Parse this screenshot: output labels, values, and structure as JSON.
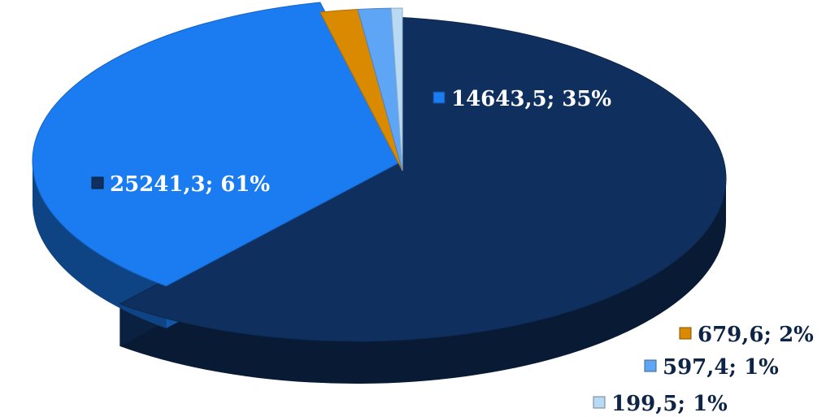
{
  "chart_data": {
    "type": "pie",
    "style": "3d-exploded",
    "title": "",
    "legend": "none",
    "slices": [
      {
        "value": 25241.3,
        "percent": 61,
        "label": "25241,3; 61%",
        "color": "#0f2f5e"
      },
      {
        "value": 14643.5,
        "percent": 35,
        "label": "14643,5; 35%",
        "color": "#1a7cf0"
      },
      {
        "value": 679.6,
        "percent": 2,
        "label": "679,6; 2%",
        "color": "#d98a00"
      },
      {
        "value": 597.4,
        "percent": 1,
        "label": "597,4; 1%",
        "color": "#5fa5f5"
      },
      {
        "value": 199.5,
        "percent": 1,
        "label": "199,5; 1%",
        "color": "#b8daf5"
      }
    ]
  }
}
